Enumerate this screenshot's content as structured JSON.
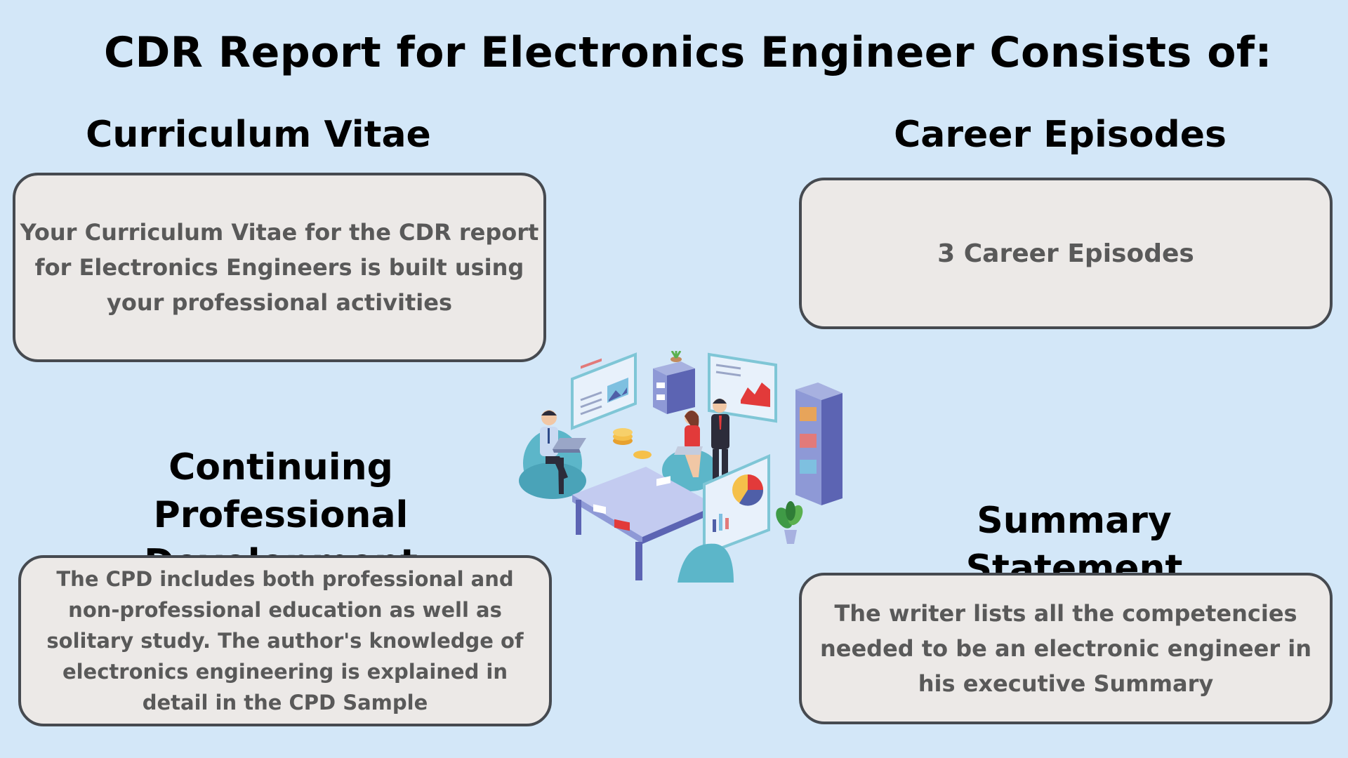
{
  "title": "CDR Report for Electronics Engineer Consists of:",
  "sections": {
    "curriculum_vitae": {
      "heading": "Curriculum Vitae",
      "text": "Your Curriculum Vitae for the CDR report for Electronics Engineers is built using your professional activities"
    },
    "career_episodes": {
      "heading": "Career Episodes",
      "text": "3 Career Episodes"
    },
    "cpd": {
      "heading": "Continuing Professional Development",
      "text": "The CPD includes both professional and non-professional education as well as solitary study. The author's knowledge of electronics engineering is explained in detail in the CPD Sample"
    },
    "summary_statement": {
      "heading": "Summary Statement",
      "text": "The writer lists all the competencies needed to be an electronic engineer in his executive Summary"
    }
  },
  "colors": {
    "background": "#d3e7f8",
    "box_fill": "#ece9e7",
    "box_border": "#464a50",
    "box_text": "#595959"
  }
}
